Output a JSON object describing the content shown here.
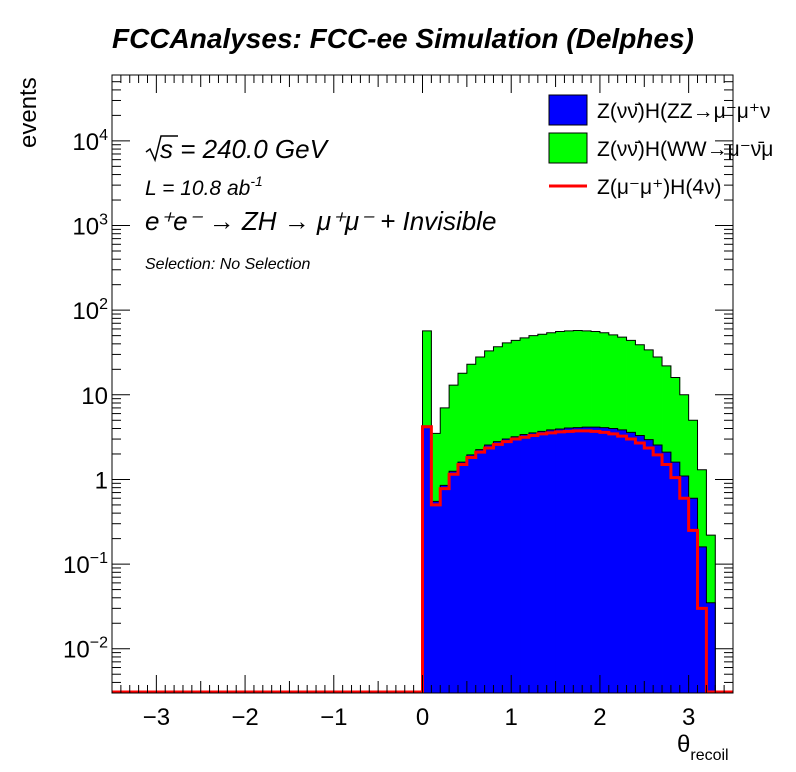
{
  "chart_data": {
    "type": "histogram",
    "title": "FCCAnalyses: FCC-ee Simulation (Delphes)",
    "xlabel_main": "θ",
    "xlabel_sub": "recoil",
    "ylabel": "events",
    "xlim": [
      -3.5,
      3.5
    ],
    "ylim": [
      0.003,
      60000
    ],
    "yscale": "log",
    "x_ticks": [
      {
        "value": -3,
        "label": "−3"
      },
      {
        "value": -2,
        "label": "−2"
      },
      {
        "value": -1,
        "label": "−1"
      },
      {
        "value": 0,
        "label": "0"
      },
      {
        "value": 1,
        "label": "1"
      },
      {
        "value": 2,
        "label": "2"
      },
      {
        "value": 3,
        "label": "3"
      }
    ],
    "y_ticks": [
      {
        "value": 0.01,
        "base": "10",
        "exp": "−2"
      },
      {
        "value": 0.1,
        "base": "10",
        "exp": "−1"
      },
      {
        "value": 1,
        "base": "1",
        "exp": ""
      },
      {
        "value": 10,
        "base": "10",
        "exp": ""
      },
      {
        "value": 100,
        "base": "10",
        "exp": "2"
      },
      {
        "value": 1000,
        "base": "10",
        "exp": "3"
      },
      {
        "value": 10000,
        "base": "10",
        "exp": "4"
      }
    ],
    "annotations": {
      "sqrt_s": "s = 240.0 GeV",
      "lumi": "L = 10.8 ab",
      "lumi_exp": "-1",
      "process": "e⁺e⁻ → ZH → μ⁺μ⁻ + Invisible",
      "selection": "Selection: No Selection"
    },
    "bin_edges_start": 0.0,
    "bin_width": 0.1,
    "series": [
      {
        "name": "Z(νν̄)H(ZZ→μ⁻μ⁺ν",
        "color": "#0000ff",
        "style": "fill",
        "values": [
          4.3,
          0.55,
          0.85,
          1.25,
          1.6,
          1.95,
          2.25,
          2.55,
          2.8,
          3.0,
          3.2,
          3.4,
          3.55,
          3.7,
          3.85,
          3.95,
          4.05,
          4.1,
          4.15,
          4.15,
          4.1,
          4.0,
          3.85,
          3.6,
          3.3,
          2.95,
          2.55,
          2.1,
          1.6,
          1.1,
          0.6,
          0.16,
          0.035
        ]
      },
      {
        "name": "Z(νν̄)H(WW→μ⁻ν̄μ",
        "color": "#00ff00",
        "style": "fill",
        "values": [
          57,
          3.5,
          7,
          13,
          18,
          23,
          28,
          33,
          37,
          41,
          44,
          47,
          50,
          52,
          54,
          56,
          57,
          57.5,
          57,
          56,
          54,
          51,
          48,
          44,
          39,
          34,
          28,
          22,
          16,
          10,
          5,
          1.3,
          0.22
        ]
      },
      {
        "name": "Z(μ⁻μ⁺)H(4ν)",
        "color": "#ff0000",
        "style": "line",
        "values": [
          4.2,
          0.5,
          0.78,
          1.15,
          1.5,
          1.82,
          2.1,
          2.35,
          2.6,
          2.8,
          3.0,
          3.15,
          3.3,
          3.45,
          3.55,
          3.65,
          3.7,
          3.75,
          3.75,
          3.7,
          3.6,
          3.45,
          3.25,
          3.0,
          2.7,
          2.35,
          1.95,
          1.5,
          1.05,
          0.6,
          0.25,
          0.03,
          0.003
        ]
      }
    ]
  }
}
